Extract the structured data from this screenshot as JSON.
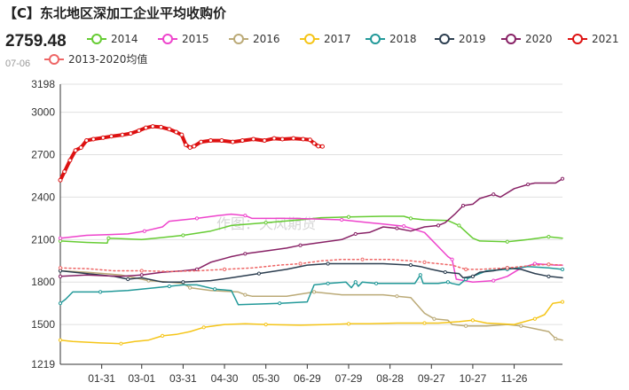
{
  "header": {
    "title": "【C】东北地区深加工企业平均收购价",
    "latest_value": "2759.48",
    "latest_date": "07-06"
  },
  "watermark": "作图：天风期货",
  "chart_data": {
    "type": "line",
    "title": "【C】东北地区深加工企业平均收购价",
    "xlabel": "",
    "ylabel": "",
    "ylim": [
      1219,
      3198
    ],
    "y_ticks": [
      "3198",
      "3000",
      "2700",
      "2400",
      "2100",
      "1800",
      "1500",
      "1219"
    ],
    "x_ticks": [
      "01-31",
      "03-01",
      "03-31",
      "04-30",
      "05-30",
      "06-29",
      "07-29",
      "08-28",
      "09-27",
      "10-27",
      "11-26"
    ],
    "x_domain_days": [
      1,
      365
    ],
    "grid": "horizontal",
    "legend_placement": "top",
    "series": [
      {
        "name": "2014",
        "color": "#66cc33",
        "dashed": false,
        "width": 1.5,
        "points": [
          [
            1,
            2090
          ],
          [
            20,
            2080
          ],
          [
            35,
            2075
          ],
          [
            36,
            2110
          ],
          [
            60,
            2100
          ],
          [
            70,
            2110
          ],
          [
            90,
            2130
          ],
          [
            110,
            2160
          ],
          [
            125,
            2200
          ],
          [
            150,
            2220
          ],
          [
            175,
            2240
          ],
          [
            190,
            2255
          ],
          [
            210,
            2260
          ],
          [
            235,
            2265
          ],
          [
            250,
            2265
          ],
          [
            255,
            2250
          ],
          [
            265,
            2240
          ],
          [
            282,
            2235
          ],
          [
            290,
            2200
          ],
          [
            300,
            2110
          ],
          [
            305,
            2090
          ],
          [
            325,
            2085
          ],
          [
            335,
            2095
          ],
          [
            340,
            2100
          ],
          [
            355,
            2120
          ],
          [
            365,
            2110
          ]
        ]
      },
      {
        "name": "2015",
        "color": "#ee44cc",
        "dashed": false,
        "width": 1.5,
        "points": [
          [
            1,
            2110
          ],
          [
            20,
            2130
          ],
          [
            50,
            2140
          ],
          [
            62,
            2160
          ],
          [
            75,
            2190
          ],
          [
            80,
            2230
          ],
          [
            100,
            2250
          ],
          [
            115,
            2270
          ],
          [
            125,
            2280
          ],
          [
            135,
            2270
          ],
          [
            140,
            2250
          ],
          [
            170,
            2250
          ],
          [
            205,
            2240
          ],
          [
            225,
            2220
          ],
          [
            235,
            2210
          ],
          [
            250,
            2195
          ],
          [
            265,
            2150
          ],
          [
            282,
            1980
          ],
          [
            285,
            1960
          ],
          [
            288,
            1820
          ],
          [
            300,
            1800
          ],
          [
            315,
            1810
          ],
          [
            325,
            1840
          ],
          [
            335,
            1900
          ],
          [
            345,
            1930
          ],
          [
            360,
            1920
          ],
          [
            365,
            1920
          ]
        ]
      },
      {
        "name": "2016",
        "color": "#bbaa77",
        "dashed": false,
        "width": 1.5,
        "points": [
          [
            1,
            1880
          ],
          [
            20,
            1870
          ],
          [
            45,
            1850
          ],
          [
            65,
            1810
          ],
          [
            80,
            1800
          ],
          [
            90,
            1790
          ],
          [
            95,
            1760
          ],
          [
            110,
            1740
          ],
          [
            130,
            1730
          ],
          [
            135,
            1710
          ],
          [
            140,
            1700
          ],
          [
            165,
            1700
          ],
          [
            185,
            1730
          ],
          [
            205,
            1710
          ],
          [
            235,
            1710
          ],
          [
            245,
            1700
          ],
          [
            255,
            1690
          ],
          [
            265,
            1580
          ],
          [
            272,
            1540
          ],
          [
            282,
            1530
          ],
          [
            285,
            1500
          ],
          [
            295,
            1490
          ],
          [
            310,
            1490
          ],
          [
            325,
            1500
          ],
          [
            335,
            1490
          ],
          [
            345,
            1470
          ],
          [
            355,
            1450
          ],
          [
            360,
            1400
          ],
          [
            365,
            1390
          ]
        ]
      },
      {
        "name": "2017",
        "color": "#f5c518",
        "dashed": false,
        "width": 1.5,
        "points": [
          [
            1,
            1390
          ],
          [
            10,
            1380
          ],
          [
            30,
            1370
          ],
          [
            45,
            1365
          ],
          [
            55,
            1380
          ],
          [
            65,
            1390
          ],
          [
            75,
            1420
          ],
          [
            85,
            1430
          ],
          [
            95,
            1450
          ],
          [
            105,
            1480
          ],
          [
            120,
            1500
          ],
          [
            135,
            1505
          ],
          [
            150,
            1500
          ],
          [
            175,
            1495
          ],
          [
            195,
            1500
          ],
          [
            210,
            1505
          ],
          [
            225,
            1505
          ],
          [
            245,
            1510
          ],
          [
            265,
            1510
          ],
          [
            275,
            1510
          ],
          [
            290,
            1520
          ],
          [
            300,
            1530
          ],
          [
            310,
            1510
          ],
          [
            330,
            1500
          ],
          [
            345,
            1540
          ],
          [
            352,
            1570
          ],
          [
            358,
            1650
          ],
          [
            365,
            1660
          ]
        ]
      },
      {
        "name": "2018",
        "color": "#229999",
        "dashed": false,
        "width": 1.5,
        "points": [
          [
            1,
            1650
          ],
          [
            5,
            1680
          ],
          [
            10,
            1730
          ],
          [
            30,
            1730
          ],
          [
            50,
            1740
          ],
          [
            70,
            1760
          ],
          [
            80,
            1770
          ],
          [
            90,
            1780
          ],
          [
            100,
            1780
          ],
          [
            113,
            1750
          ],
          [
            125,
            1740
          ],
          [
            130,
            1640
          ],
          [
            160,
            1650
          ],
          [
            180,
            1660
          ],
          [
            185,
            1780
          ],
          [
            195,
            1790
          ],
          [
            208,
            1800
          ],
          [
            212,
            1760
          ],
          [
            215,
            1800
          ],
          [
            217,
            1770
          ],
          [
            220,
            1800
          ],
          [
            230,
            1790
          ],
          [
            245,
            1790
          ],
          [
            258,
            1790
          ],
          [
            262,
            1850
          ],
          [
            264,
            1790
          ],
          [
            275,
            1790
          ],
          [
            282,
            1800
          ],
          [
            285,
            1790
          ],
          [
            290,
            1780
          ],
          [
            295,
            1820
          ],
          [
            300,
            1840
          ],
          [
            310,
            1880
          ],
          [
            325,
            1890
          ],
          [
            340,
            1910
          ],
          [
            355,
            1900
          ],
          [
            365,
            1890
          ]
        ]
      },
      {
        "name": "2019",
        "color": "#2c3e50",
        "dashed": false,
        "width": 1.5,
        "points": [
          [
            1,
            1880
          ],
          [
            20,
            1860
          ],
          [
            40,
            1840
          ],
          [
            50,
            1820
          ],
          [
            60,
            1830
          ],
          [
            75,
            1800
          ],
          [
            90,
            1800
          ],
          [
            110,
            1810
          ],
          [
            125,
            1830
          ],
          [
            145,
            1860
          ],
          [
            165,
            1890
          ],
          [
            180,
            1920
          ],
          [
            195,
            1930
          ],
          [
            215,
            1930
          ],
          [
            235,
            1930
          ],
          [
            255,
            1920
          ],
          [
            262,
            1910
          ],
          [
            270,
            1890
          ],
          [
            280,
            1870
          ],
          [
            290,
            1860
          ],
          [
            293,
            1830
          ],
          [
            300,
            1840
          ],
          [
            305,
            1870
          ],
          [
            315,
            1880
          ],
          [
            325,
            1900
          ],
          [
            335,
            1890
          ],
          [
            345,
            1860
          ],
          [
            355,
            1840
          ],
          [
            365,
            1830
          ]
        ]
      },
      {
        "name": "2020",
        "color": "#882266",
        "dashed": false,
        "width": 1.5,
        "points": [
          [
            1,
            1840
          ],
          [
            20,
            1850
          ],
          [
            45,
            1840
          ],
          [
            60,
            1850
          ],
          [
            75,
            1870
          ],
          [
            90,
            1880
          ],
          [
            100,
            1890
          ],
          [
            110,
            1940
          ],
          [
            125,
            1980
          ],
          [
            135,
            2000
          ],
          [
            150,
            2020
          ],
          [
            165,
            2040
          ],
          [
            175,
            2060
          ],
          [
            190,
            2080
          ],
          [
            205,
            2100
          ],
          [
            215,
            2140
          ],
          [
            225,
            2150
          ],
          [
            235,
            2190
          ],
          [
            245,
            2180
          ],
          [
            255,
            2160
          ],
          [
            265,
            2190
          ],
          [
            275,
            2200
          ],
          [
            280,
            2220
          ],
          [
            287,
            2280
          ],
          [
            293,
            2340
          ],
          [
            300,
            2350
          ],
          [
            305,
            2390
          ],
          [
            315,
            2420
          ],
          [
            320,
            2400
          ],
          [
            330,
            2460
          ],
          [
            340,
            2490
          ],
          [
            345,
            2500
          ],
          [
            360,
            2500
          ],
          [
            365,
            2530
          ]
        ]
      },
      {
        "name": "2021",
        "color": "#dd1111",
        "dashed": false,
        "width": 4,
        "points": [
          [
            1,
            2520
          ],
          [
            4,
            2580
          ],
          [
            8,
            2660
          ],
          [
            12,
            2730
          ],
          [
            16,
            2750
          ],
          [
            20,
            2800
          ],
          [
            25,
            2810
          ],
          [
            32,
            2820
          ],
          [
            38,
            2830
          ],
          [
            46,
            2840
          ],
          [
            52,
            2850
          ],
          [
            58,
            2870
          ],
          [
            63,
            2890
          ],
          [
            68,
            2900
          ],
          [
            74,
            2895
          ],
          [
            80,
            2880
          ],
          [
            85,
            2860
          ],
          [
            89,
            2840
          ],
          [
            92,
            2770
          ],
          [
            95,
            2750
          ],
          [
            98,
            2760
          ],
          [
            103,
            2790
          ],
          [
            110,
            2800
          ],
          [
            118,
            2800
          ],
          [
            126,
            2790
          ],
          [
            133,
            2800
          ],
          [
            141,
            2810
          ],
          [
            149,
            2800
          ],
          [
            156,
            2815
          ],
          [
            162,
            2810
          ],
          [
            170,
            2815
          ],
          [
            177,
            2810
          ],
          [
            182,
            2805
          ],
          [
            185,
            2780
          ],
          [
            188,
            2760
          ],
          [
            191,
            2758
          ]
        ]
      },
      {
        "name": "2013-2020均值",
        "color": "#ee6666",
        "dashed": true,
        "width": 1.5,
        "points": [
          [
            1,
            1900
          ],
          [
            20,
            1895
          ],
          [
            40,
            1880
          ],
          [
            60,
            1880
          ],
          [
            80,
            1875
          ],
          [
            100,
            1880
          ],
          [
            120,
            1890
          ],
          [
            140,
            1900
          ],
          [
            160,
            1920
          ],
          [
            175,
            1930
          ],
          [
            190,
            1950
          ],
          [
            205,
            1960
          ],
          [
            220,
            1960
          ],
          [
            240,
            1960
          ],
          [
            255,
            1950
          ],
          [
            265,
            1940
          ],
          [
            275,
            1930
          ],
          [
            285,
            1920
          ],
          [
            295,
            1890
          ],
          [
            305,
            1890
          ],
          [
            315,
            1895
          ],
          [
            325,
            1900
          ],
          [
            335,
            1910
          ],
          [
            345,
            1920
          ],
          [
            355,
            1925
          ],
          [
            365,
            1920
          ]
        ]
      }
    ]
  }
}
